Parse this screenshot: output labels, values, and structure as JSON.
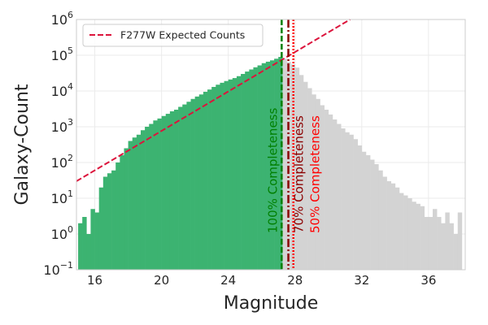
{
  "chart_data": {
    "type": "bar",
    "title": "",
    "xlabel": "Magnitude",
    "ylabel": "Galaxy-Count",
    "xlim": [
      14.9,
      38.2
    ],
    "ylim": [
      0.1,
      1000000
    ],
    "yscale": "log",
    "grid": true,
    "legend_position": "top-left",
    "x_ticks": [
      16,
      20,
      24,
      28,
      32,
      36
    ],
    "x_tick_labels": [
      "16",
      "20",
      "24",
      "28",
      "32",
      "36"
    ],
    "y_ticks": [
      0.1,
      1,
      10,
      100,
      1000,
      10000,
      100000,
      1000000
    ],
    "y_tick_labels": [
      {
        "base": "10",
        "exp": "−1"
      },
      {
        "base": "10",
        "exp": "0"
      },
      {
        "base": "10",
        "exp": "1"
      },
      {
        "base": "10",
        "exp": "2"
      },
      {
        "base": "10",
        "exp": "3"
      },
      {
        "base": "10",
        "exp": "4"
      },
      {
        "base": "10",
        "exp": "5"
      },
      {
        "base": "10",
        "exp": "6"
      }
    ],
    "bin_width": 0.25,
    "colors": {
      "detected": "#3cb371",
      "undetected": "#d3d3d3",
      "expected": "#dc143c",
      "c100": "#008000",
      "c70": "#8b0000",
      "c50": "#ff0000"
    },
    "histogram": {
      "bin_starts": [
        15,
        15.25,
        15.5,
        15.75,
        16,
        16.25,
        16.5,
        16.75,
        17,
        17.25,
        17.5,
        17.75,
        18,
        18.25,
        18.5,
        18.75,
        19,
        19.25,
        19.5,
        19.75,
        20,
        20.25,
        20.5,
        20.75,
        21,
        21.25,
        21.5,
        21.75,
        22,
        22.25,
        22.5,
        22.75,
        23,
        23.25,
        23.5,
        23.75,
        24,
        24.25,
        24.5,
        24.75,
        25,
        25.25,
        25.5,
        25.75,
        26,
        26.25,
        26.5,
        26.75,
        27,
        27.25,
        27.5,
        27.75,
        28,
        28.25,
        28.5,
        28.75,
        29,
        29.25,
        29.5,
        29.75,
        30,
        30.25,
        30.5,
        30.75,
        31,
        31.25,
        31.5,
        31.75,
        32,
        32.25,
        32.5,
        32.75,
        33,
        33.25,
        33.5,
        33.75,
        34,
        34.25,
        34.5,
        34.75,
        35,
        35.25,
        35.5,
        35.75,
        36,
        36.25,
        36.5,
        36.75,
        37,
        37.25,
        37.5,
        37.75
      ],
      "counts": [
        2,
        3,
        1,
        5,
        4,
        20,
        40,
        50,
        60,
        100,
        160,
        250,
        400,
        500,
        600,
        800,
        1000,
        1200,
        1500,
        1700,
        2000,
        2300,
        2700,
        3000,
        3600,
        4200,
        5000,
        6000,
        7000,
        8000,
        9500,
        11000,
        13000,
        15000,
        17000,
        19000,
        21000,
        23000,
        26000,
        30000,
        35000,
        40000,
        46000,
        52000,
        60000,
        66000,
        72000,
        80000,
        90000,
        80000,
        65000,
        55000,
        45000,
        28000,
        18000,
        12000,
        8000,
        6000,
        4000,
        3000,
        2200,
        1600,
        1200,
        900,
        700,
        600,
        450,
        300,
        200,
        160,
        120,
        90,
        60,
        40,
        30,
        26,
        20,
        14,
        12,
        10,
        8,
        7,
        6,
        3,
        3,
        5,
        3,
        2,
        4,
        2,
        1,
        4,
        1,
        3
      ],
      "detected_below": 27.25
    },
    "series": [
      {
        "name": "F277W Expected Counts",
        "style": "dashed",
        "points": [
          [
            14.9,
            30
          ],
          [
            31.3,
            1000000
          ]
        ]
      }
    ],
    "vlines": [
      {
        "x": 27.2,
        "label": "100% Completeness",
        "style": "dashed"
      },
      {
        "x": 27.6,
        "label": "70% Completeness",
        "style": "dashdot"
      },
      {
        "x": 27.9,
        "label": "50% Completeness",
        "style": "dotted"
      }
    ]
  }
}
